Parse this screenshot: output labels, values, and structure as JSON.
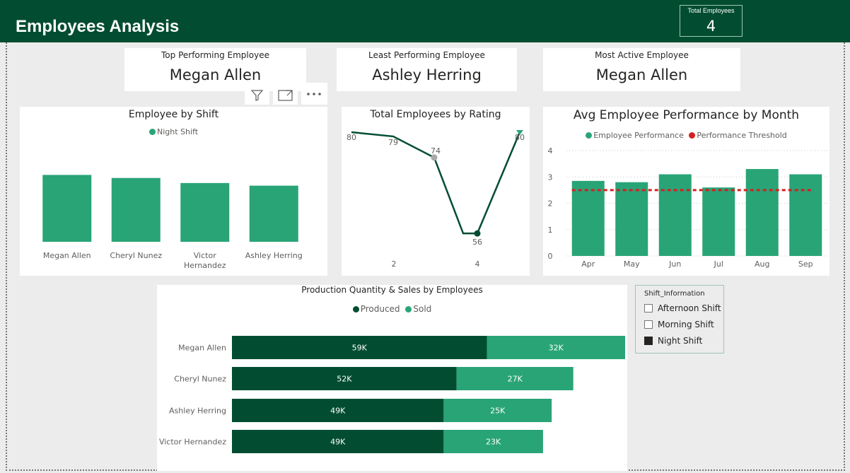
{
  "header": {
    "title": "Employees Analysis",
    "total_label": "Total Employees",
    "total_value": "4"
  },
  "kpis": [
    {
      "label": "Top Performing Employee",
      "value": "Megan Allen"
    },
    {
      "label": "Least Performing Employee",
      "value": "Ashley Herring"
    },
    {
      "label": "Most Active Employee",
      "value": "Megan Allen"
    }
  ],
  "colors": {
    "header": "#024d31",
    "light_green": "#29a477",
    "dark_green": "#024d31",
    "threshold_red": "#d61f1f",
    "background": "#ececec"
  },
  "visual_toolbar": {
    "icons": [
      "filter-icon",
      "focus-mode-icon",
      "more-options-icon"
    ]
  },
  "slicer": {
    "title": "Shift_Information",
    "items": [
      {
        "label": "Afternoon Shift",
        "checked": false
      },
      {
        "label": "Morning Shift",
        "checked": false
      },
      {
        "label": "Night Shift",
        "checked": true
      }
    ]
  },
  "chart_data": [
    {
      "id": "shift",
      "type": "bar",
      "title": "Employee by Shift",
      "legend": [
        "Night Shift"
      ],
      "legend_position": "top-center",
      "categories": [
        "Megan Allen",
        "Cheryl Nunez",
        "Victor Hernandez",
        "Ashley Herring"
      ],
      "category_labels": [
        [
          "Megan Allen"
        ],
        [
          "Cheryl Nunez"
        ],
        [
          "Victor",
          "Hernandez"
        ],
        [
          "Ashley Herring"
        ]
      ],
      "series": [
        {
          "name": "Night Shift",
          "values": [
            3.3,
            3.15,
            2.9,
            2.77
          ]
        }
      ],
      "ylim": [
        0,
        4.5
      ],
      "y_axis_visible": false
    },
    {
      "id": "rating",
      "type": "line",
      "title": "Total Employees by Rating",
      "x": [
        "",
        "",
        "",
        "2",
        "4",
        ""
      ],
      "values": [
        80,
        79,
        74,
        56,
        56,
        80
      ],
      "labels": [
        "80",
        "79",
        "74",
        "",
        "56",
        "80"
      ],
      "ylim": [
        52,
        81
      ],
      "y_axis_visible": false
    },
    {
      "id": "performance",
      "type": "bar",
      "title": "Avg Employee Performance by Month",
      "legend": [
        "Employee Performance",
        "Performance Threshold"
      ],
      "legend_position": "top-center",
      "categories": [
        "Apr",
        "May",
        "Jun",
        "Jul",
        "Aug",
        "Sep"
      ],
      "series": [
        {
          "name": "Employee Performance",
          "values": [
            2.85,
            2.8,
            3.1,
            2.6,
            3.3,
            3.1
          ]
        }
      ],
      "threshold": {
        "name": "Performance Threshold",
        "value": 2.5
      },
      "yticks": [
        "0",
        "1",
        "2",
        "3",
        "4"
      ],
      "ylim": [
        0,
        4
      ],
      "grid": true
    },
    {
      "id": "production",
      "type": "bar",
      "orientation": "horizontal",
      "stacked": true,
      "title": "Production Quantity & Sales by Employees",
      "legend": [
        "Produced",
        "Sold"
      ],
      "legend_position": "top-center",
      "categories": [
        "Megan Allen",
        "Cheryl Nunez",
        "Ashley Herring",
        "Victor Hernandez"
      ],
      "series": [
        {
          "name": "Produced",
          "values": [
            59000,
            52000,
            49000,
            49000
          ],
          "labels": [
            "59K",
            "52K",
            "49K",
            "49K"
          ]
        },
        {
          "name": "Sold",
          "values": [
            32000,
            27000,
            25000,
            23000
          ],
          "labels": [
            "32K",
            "27K",
            "25K",
            "23K"
          ]
        }
      ],
      "xlim": [
        0,
        91000
      ],
      "x_axis_visible": false
    }
  ]
}
